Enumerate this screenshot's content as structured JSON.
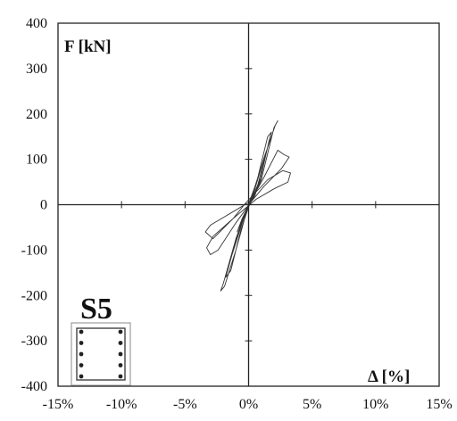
{
  "chart_data": {
    "type": "line",
    "title": "",
    "ylabel": "F [kN]",
    "xlabel": "Δ [%]",
    "annotation": "S5",
    "xlim": [
      -15,
      15
    ],
    "ylim": [
      -400,
      400
    ],
    "x_ticks": [
      -15,
      -10,
      -5,
      0,
      5,
      10,
      15
    ],
    "x_tick_labels": [
      "-15%",
      "-10%",
      "-5%",
      "0%",
      "5%",
      "10%",
      "15%"
    ],
    "y_ticks": [
      -400,
      -300,
      -200,
      -100,
      0,
      100,
      200,
      300,
      400
    ],
    "y_tick_labels": [
      "-400",
      "-300",
      "-200",
      "-100",
      "0",
      "100",
      "200",
      "300",
      "400"
    ],
    "grid": false,
    "series": [
      {
        "values": [
          [
            0,
            0
          ],
          [
            0.5,
            20
          ],
          [
            0.9,
            55
          ],
          [
            0.2,
            10
          ],
          [
            -0.5,
            -30
          ],
          [
            -0.9,
            -60
          ],
          [
            -0.2,
            -15
          ],
          [
            0,
            0
          ],
          [
            0.6,
            30
          ],
          [
            1.2,
            95
          ],
          [
            1.3,
            110
          ],
          [
            0.5,
            35
          ],
          [
            -0.6,
            -45
          ],
          [
            -1.2,
            -95
          ],
          [
            -1.3,
            -110
          ],
          [
            -0.5,
            -40
          ],
          [
            0,
            0
          ],
          [
            0.8,
            40
          ],
          [
            1.6,
            140
          ],
          [
            1.8,
            160
          ],
          [
            1.5,
            150
          ],
          [
            0.6,
            45
          ],
          [
            -0.8,
            -60
          ],
          [
            -1.6,
            -140
          ],
          [
            -1.8,
            -160
          ],
          [
            -1.4,
            -145
          ],
          [
            -0.6,
            -55
          ],
          [
            0,
            -5
          ],
          [
            1.0,
            55
          ],
          [
            2.0,
            170
          ],
          [
            2.3,
            185
          ],
          [
            2.1,
            175
          ],
          [
            1.3,
            110
          ],
          [
            0.5,
            40
          ],
          [
            -1.0,
            -75
          ],
          [
            -2.0,
            -175
          ],
          [
            -2.2,
            -190
          ],
          [
            -1.9,
            -180
          ],
          [
            -1.0,
            -100
          ],
          [
            -0.3,
            -30
          ],
          [
            0,
            0
          ],
          [
            1.2,
            60
          ],
          [
            2.3,
            120
          ],
          [
            2.8,
            110
          ],
          [
            3.2,
            105
          ],
          [
            2.6,
            80
          ],
          [
            1.2,
            40
          ],
          [
            0.3,
            10
          ],
          [
            -1.0,
            -40
          ],
          [
            -2.4,
            -100
          ],
          [
            -3.0,
            -110
          ],
          [
            -3.3,
            -95
          ],
          [
            -2.8,
            -70
          ],
          [
            -1.2,
            -30
          ],
          [
            -0.2,
            5
          ],
          [
            1.5,
            55
          ],
          [
            2.7,
            75
          ],
          [
            3.3,
            70
          ],
          [
            3.1,
            50
          ],
          [
            2.0,
            35
          ],
          [
            0.6,
            12
          ],
          [
            -1.2,
            -30
          ],
          [
            -2.8,
            -75
          ],
          [
            -3.4,
            -60
          ],
          [
            -3.0,
            -45
          ],
          [
            -1.8,
            -25
          ],
          [
            0,
            5
          ]
        ]
      }
    ]
  },
  "inset": {
    "section_label": "S5",
    "bar_count": 10
  }
}
